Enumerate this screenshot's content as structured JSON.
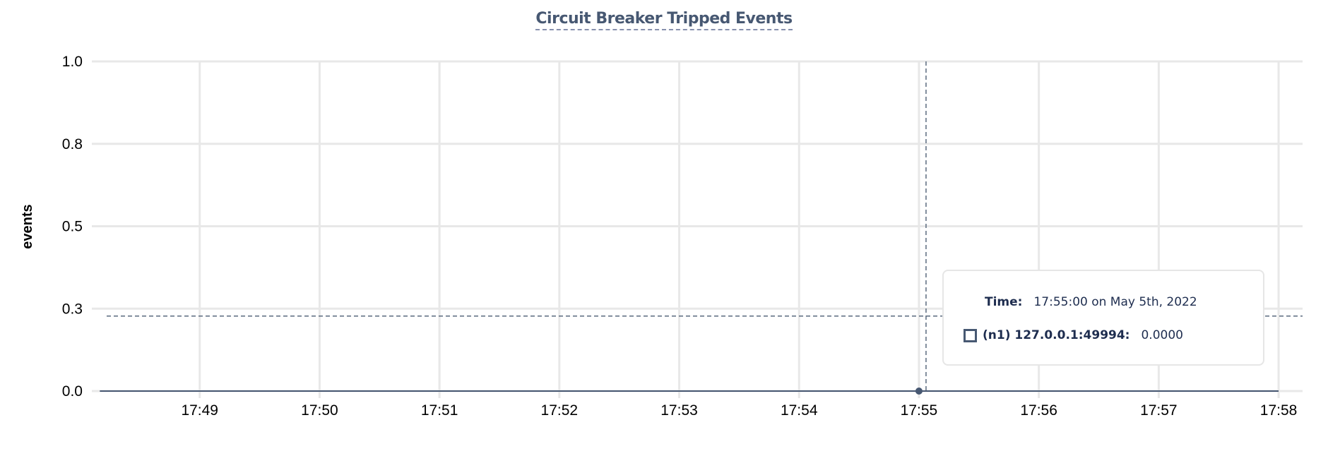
{
  "chart_data": {
    "type": "line",
    "title": "Circuit Breaker Tripped Events",
    "ylabel": "events",
    "xlabel": "",
    "ylim": [
      0,
      1
    ],
    "y_ticks": [
      0,
      0.25,
      0.5,
      0.75,
      1.0
    ],
    "y_tick_labels": [
      "0.0",
      "0.3",
      "0.5",
      "0.8",
      "1.0"
    ],
    "x_ticks": [
      "17:49",
      "17:50",
      "17:51",
      "17:52",
      "17:53",
      "17:54",
      "17:55",
      "17:56",
      "17:57",
      "17:58"
    ],
    "xlim": [
      "17:48:06",
      "17:58:12"
    ],
    "grid": true,
    "series": [
      {
        "name": "(n1) 127.0.0.1:49994",
        "color": "#475872",
        "x": [
          "17:48:10",
          "17:49",
          "17:50",
          "17:51",
          "17:52",
          "17:53",
          "17:54",
          "17:55",
          "17:56",
          "17:57",
          "17:58"
        ],
        "values": [
          0,
          0,
          0,
          0,
          0,
          0,
          0,
          0,
          0,
          0,
          0
        ]
      }
    ],
    "hover": {
      "time": "17:55",
      "value": 0.2275
    }
  },
  "tooltip": {
    "time_label": "Time:",
    "time_value": "17:55:00 on May 5th, 2022",
    "series_label": "(n1) 127.0.0.1:49994:",
    "series_value": "0.0000"
  }
}
